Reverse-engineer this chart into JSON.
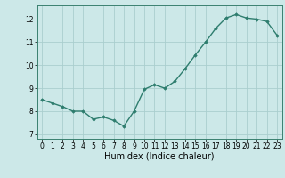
{
  "x": [
    0,
    1,
    2,
    3,
    4,
    5,
    6,
    7,
    8,
    9,
    10,
    11,
    12,
    13,
    14,
    15,
    16,
    17,
    18,
    19,
    20,
    21,
    22,
    23
  ],
  "y": [
    8.5,
    8.35,
    8.2,
    8.0,
    8.0,
    7.65,
    7.75,
    7.6,
    7.35,
    8.0,
    8.95,
    9.15,
    9.0,
    9.3,
    9.85,
    10.45,
    11.0,
    11.6,
    12.05,
    12.2,
    12.05,
    12.0,
    11.9,
    11.3
  ],
  "line_color": "#2e7d6e",
  "marker": "D",
  "marker_size": 1.8,
  "background_color": "#cce8e8",
  "grid_color": "#aacece",
  "xlabel": "Humidex (Indice chaleur)",
  "xlim": [
    -0.5,
    23.5
  ],
  "ylim": [
    6.8,
    12.6
  ],
  "yticks": [
    7,
    8,
    9,
    10,
    11,
    12
  ],
  "xticks": [
    0,
    1,
    2,
    3,
    4,
    5,
    6,
    7,
    8,
    9,
    10,
    11,
    12,
    13,
    14,
    15,
    16,
    17,
    18,
    19,
    20,
    21,
    22,
    23
  ],
  "tick_fontsize": 5.5,
  "xlabel_fontsize": 7.0,
  "linewidth": 1.0
}
